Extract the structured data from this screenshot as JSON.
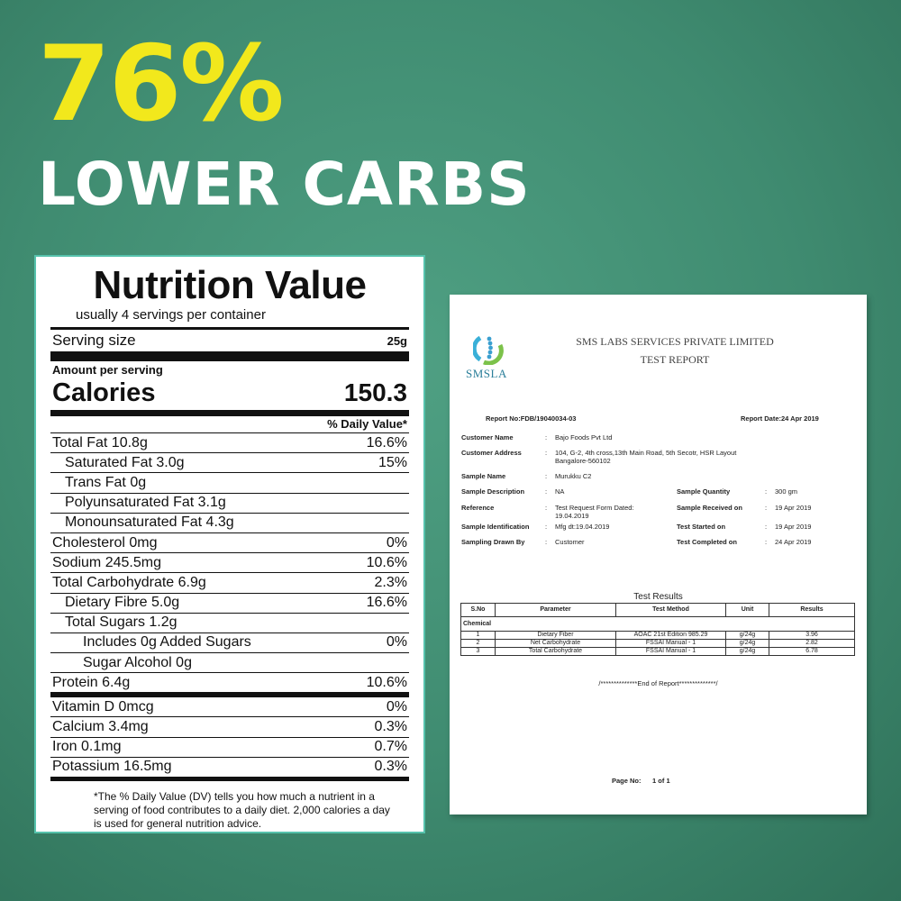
{
  "headline": {
    "percent": "76%",
    "text": "LOWER CARBS"
  },
  "colors": {
    "background": "#3f8b70",
    "percent": "#f2e81c",
    "text": "#ffffff",
    "panel_border": "#56c2ac"
  },
  "nutrition": {
    "title": "Nutrition Value",
    "servings_per_container": "usually 4 servings per container",
    "serving_size_label": "Serving size",
    "serving_size_value": "25g",
    "amount_per_serving": "Amount per serving",
    "calories_label": "Calories",
    "calories_value": "150.3",
    "daily_value_header": "% Daily Value*",
    "rows": [
      {
        "name": "Total Fat 10.8g",
        "dv": "16.6%"
      },
      {
        "name": "Saturated Fat 3.0g",
        "dv": "15%"
      },
      {
        "name": "Trans Fat 0g",
        "dv": ""
      },
      {
        "name": "Polyunsaturated Fat 3.1g",
        "dv": ""
      },
      {
        "name": "Monounsaturated Fat 4.3g",
        "dv": ""
      },
      {
        "name": "Cholesterol 0mg",
        "dv": "0%"
      },
      {
        "name": "Sodium 245.5mg",
        "dv": "10.6%"
      },
      {
        "name": "Total Carbohydrate 6.9g",
        "dv": "2.3%"
      },
      {
        "name": "Dietary Fibre 5.0g",
        "dv": "16.6%"
      },
      {
        "name": "Total Sugars 1.2g",
        "dv": ""
      },
      {
        "name": "Includes 0g Added Sugars",
        "dv": "0%"
      },
      {
        "name": "Sugar Alcohol 0g",
        "dv": ""
      },
      {
        "name": "Protein 6.4g",
        "dv": "10.6%"
      },
      {
        "name": "Vitamin D 0mcg",
        "dv": "0%"
      },
      {
        "name": "Calcium 3.4mg",
        "dv": "0.3%"
      },
      {
        "name": "Iron 0.1mg",
        "dv": "0.7%"
      },
      {
        "name": "Potassium 16.5mg",
        "dv": "0.3%"
      }
    ],
    "footnote": "*The % Daily Value (DV) tells you how much a nutrient in a serving of food contributes to a daily diet. 2,000 calories a day is used for general nutrition advice."
  },
  "report": {
    "logo_text": "SMSLA",
    "company": "SMS LABS SERVICES PRIVATE LIMITED",
    "doc_title": "TEST REPORT",
    "report_no": "Report No:FDB/19040034-03",
    "report_date": "Report Date:24 Apr 2019",
    "customer_name_label": "Customer Name",
    "customer_name": "Bajo Foods Pvt Ltd",
    "customer_address_label": "Customer Address",
    "customer_address": "104, G-2, 4th cross,13th Main Road, 5th Secotr, HSR Layout Bangalore-560102",
    "sample_name_label": "Sample Name",
    "sample_name": "Murukku C2",
    "sample_description_label": "Sample Description",
    "sample_description": "NA",
    "sample_quantity_label": "Sample Quantity",
    "sample_quantity": "300 gm",
    "reference_label": "Reference",
    "reference": "Test Request Form Dated: 19.04.2019",
    "sample_received_label": "Sample Received on",
    "sample_received": "19 Apr 2019",
    "sample_identification_label": "Sample Identification",
    "sample_identification": "Mfg dt:19.04.2019",
    "test_started_label": "Test Started on",
    "test_started": "19 Apr 2019",
    "sampling_drawn_label": "Sampling Drawn By",
    "sampling_drawn": "Customer",
    "test_completed_label": "Test Completed on",
    "test_completed": "24 Apr 2019",
    "colon": ":",
    "results_title": "Test Results",
    "table_headers": [
      "S.No",
      "Parameter",
      "Test Method",
      "Unit",
      "Results"
    ],
    "section": "Chemical",
    "results": [
      {
        "sno": "1",
        "parameter": "Dietary Fiber",
        "method": "AOAC 21st Edition 985.29",
        "unit": "g/24g",
        "result": "3.96"
      },
      {
        "sno": "2",
        "parameter": "Net Carbohydrate",
        "method": "FSSAI Manual - 1",
        "unit": "g/24g",
        "result": "2.82"
      },
      {
        "sno": "3",
        "parameter": "Total Carbohydrate",
        "method": "FSSAI Manual - 1",
        "unit": "g/24g",
        "result": "6.78"
      }
    ],
    "end_of_report": "/**************End of Report**************/",
    "page_no_label": "Page No:",
    "page_no": "1 of 1"
  }
}
